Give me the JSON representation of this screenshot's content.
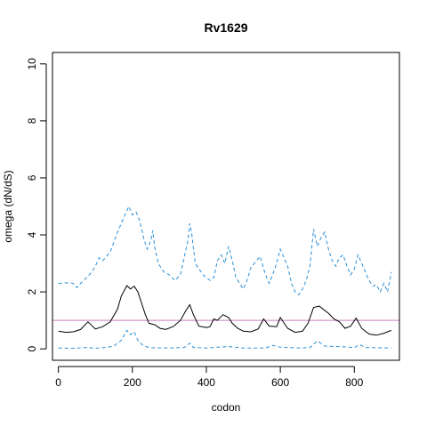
{
  "chart_data": {
    "type": "line",
    "title": "Rv1629",
    "xlabel": "codon",
    "ylabel": "omega (dN/dS)",
    "xlim": [
      -16,
      922
    ],
    "ylim": [
      -0.4,
      10.4
    ],
    "xticks": [
      0,
      200,
      400,
      600,
      800
    ],
    "yticks": [
      0,
      2,
      4,
      6,
      8,
      10
    ],
    "grid": false,
    "legend": "none",
    "reference_line": {
      "y": 1,
      "color": "#c77fc3"
    },
    "colors": {
      "median": "#000000",
      "bounds": "#2a8fd8"
    },
    "series": [
      {
        "role": "median",
        "style": "solid",
        "x": [
          0,
          20,
          40,
          60,
          80,
          100,
          120,
          140,
          160,
          170,
          185,
          195,
          205,
          215,
          225,
          235,
          245,
          260,
          275,
          290,
          310,
          330,
          345,
          355,
          365,
          380,
          400,
          410,
          420,
          430,
          445,
          460,
          470,
          485,
          500,
          520,
          540,
          555,
          570,
          590,
          600,
          620,
          640,
          660,
          675,
          690,
          705,
          715,
          730,
          745,
          760,
          775,
          790,
          805,
          820,
          840,
          860,
          880,
          900
        ],
        "values": [
          0.62,
          0.58,
          0.6,
          0.68,
          0.95,
          0.7,
          0.78,
          0.95,
          1.4,
          1.85,
          2.22,
          2.1,
          2.2,
          2.0,
          1.6,
          1.2,
          0.9,
          0.85,
          0.72,
          0.68,
          0.78,
          1.0,
          1.35,
          1.55,
          1.2,
          0.8,
          0.75,
          0.78,
          1.05,
          1.0,
          1.2,
          1.1,
          0.9,
          0.72,
          0.62,
          0.6,
          0.7,
          1.05,
          0.8,
          0.78,
          1.1,
          0.72,
          0.58,
          0.62,
          0.9,
          1.45,
          1.5,
          1.4,
          1.25,
          1.05,
          0.95,
          0.72,
          0.8,
          1.08,
          0.72,
          0.52,
          0.48,
          0.55,
          0.65
        ]
      },
      {
        "role": "upper bound",
        "style": "dashed",
        "x": [
          0,
          20,
          40,
          50,
          60,
          80,
          90,
          100,
          110,
          120,
          130,
          140,
          150,
          160,
          170,
          180,
          190,
          200,
          210,
          220,
          230,
          240,
          250,
          255,
          260,
          270,
          285,
          300,
          315,
          330,
          340,
          350,
          355,
          360,
          370,
          380,
          395,
          410,
          420,
          430,
          440,
          450,
          460,
          470,
          480,
          490,
          500,
          510,
          520,
          530,
          545,
          560,
          570,
          585,
          600,
          610,
          620,
          630,
          640,
          650,
          660,
          670,
          680,
          690,
          700,
          710,
          720,
          730,
          740,
          750,
          760,
          770,
          780,
          790,
          800,
          810,
          820,
          830,
          840,
          850,
          860,
          870,
          880,
          890,
          900
        ],
        "values": [
          2.3,
          2.32,
          2.3,
          2.15,
          2.3,
          2.55,
          2.7,
          2.9,
          3.2,
          3.1,
          3.25,
          3.4,
          3.75,
          4.1,
          4.4,
          4.7,
          5.0,
          4.7,
          4.8,
          4.5,
          3.9,
          3.5,
          3.8,
          4.15,
          3.6,
          3.0,
          2.7,
          2.6,
          2.4,
          2.6,
          3.2,
          3.8,
          4.4,
          4.1,
          3.0,
          2.8,
          2.55,
          2.4,
          2.5,
          3.1,
          3.3,
          3.0,
          3.6,
          3.1,
          2.5,
          2.3,
          2.1,
          2.4,
          2.85,
          3.0,
          3.25,
          2.6,
          2.3,
          2.8,
          3.5,
          3.2,
          2.9,
          2.3,
          2.0,
          1.9,
          2.1,
          2.4,
          2.9,
          4.2,
          3.6,
          3.9,
          4.1,
          3.5,
          3.1,
          2.9,
          3.2,
          3.3,
          2.9,
          2.6,
          2.8,
          3.3,
          3.0,
          2.7,
          2.4,
          2.2,
          2.25,
          2.0,
          2.3,
          2.0,
          2.7
        ]
      },
      {
        "role": "lower bound",
        "style": "dashed",
        "x": [
          0,
          40,
          80,
          100,
          130,
          150,
          170,
          185,
          195,
          205,
          215,
          230,
          250,
          300,
          340,
          355,
          365,
          400,
          430,
          460,
          500,
          560,
          580,
          600,
          660,
          680,
          700,
          720,
          760,
          800,
          815,
          830,
          900
        ],
        "values": [
          0.03,
          0.02,
          0.05,
          0.02,
          0.05,
          0.1,
          0.3,
          0.65,
          0.5,
          0.6,
          0.3,
          0.1,
          0.04,
          0.03,
          0.05,
          0.2,
          0.05,
          0.03,
          0.06,
          0.08,
          0.03,
          0.03,
          0.12,
          0.06,
          0.03,
          0.05,
          0.28,
          0.1,
          0.08,
          0.05,
          0.15,
          0.05,
          0.03
        ]
      }
    ]
  }
}
